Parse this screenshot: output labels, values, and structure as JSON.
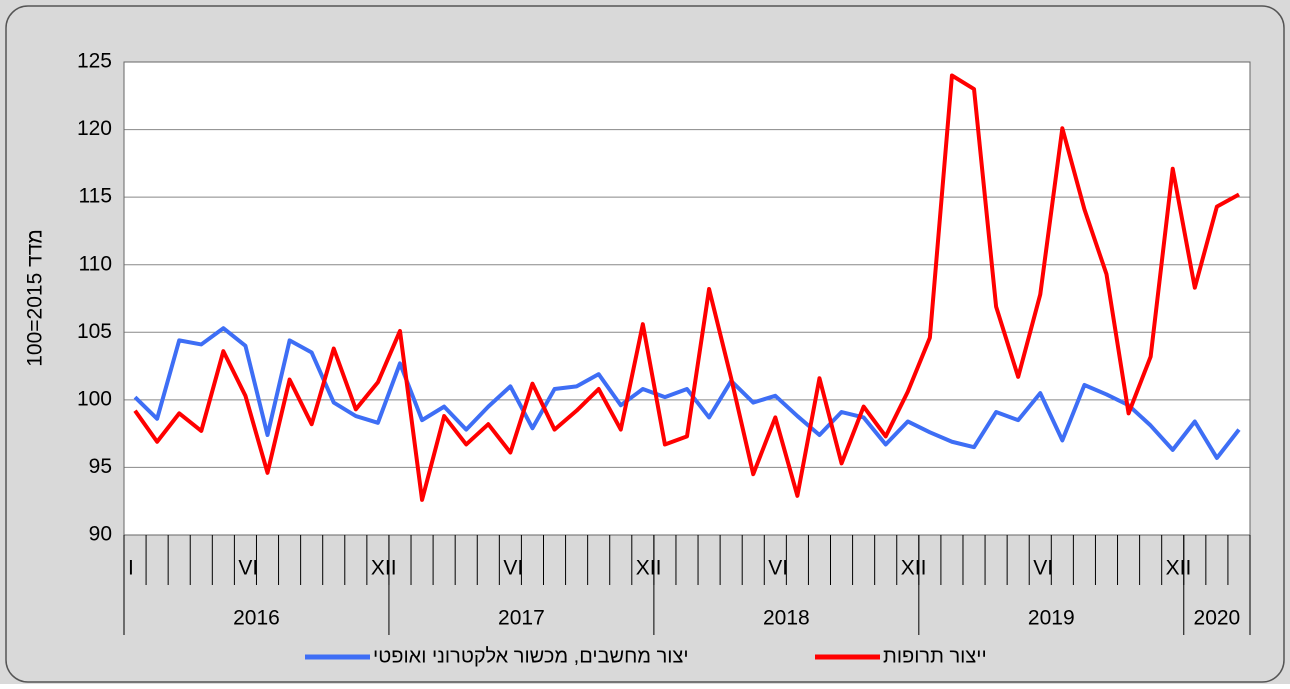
{
  "chart_data": {
    "type": "line",
    "y_label": "מדד 2015=100",
    "categories": [
      "I",
      null,
      null,
      null,
      null,
      "VI",
      null,
      null,
      null,
      null,
      null,
      "XII",
      null,
      null,
      null,
      null,
      null,
      "VI",
      null,
      null,
      null,
      null,
      null,
      "XII",
      null,
      null,
      null,
      null,
      null,
      "VI",
      null,
      null,
      null,
      null,
      null,
      "XII",
      null,
      null,
      null,
      null,
      null,
      "VI",
      null,
      null,
      null,
      null,
      null,
      "XII",
      null,
      null,
      null
    ],
    "years": [
      "2016",
      "2017",
      "2018",
      "2019",
      "2020"
    ],
    "year_spans": [
      12,
      12,
      12,
      12,
      3
    ],
    "series": [
      {
        "name": "יצור מחשבים, מכשור אלקטרוני ואופטי",
        "color": "#3e6ef5",
        "values": [
          100.2,
          98.6,
          104.4,
          104.1,
          105.3,
          104.0,
          97.4,
          104.4,
          103.5,
          99.8,
          98.8,
          98.3,
          102.7,
          98.5,
          99.5,
          97.8,
          99.5,
          101.0,
          97.9,
          100.8,
          101.0,
          101.9,
          99.6,
          100.8,
          100.2,
          100.8,
          98.7,
          101.4,
          99.8,
          100.3,
          98.8,
          97.4,
          99.1,
          98.7,
          96.7,
          98.4,
          97.6,
          96.9,
          96.5,
          99.1,
          98.5,
          100.5,
          97.0,
          101.1,
          100.4,
          99.6,
          98.1,
          96.3,
          98.4,
          95.7,
          97.8
        ]
      },
      {
        "name": "ייצור תרופות",
        "color": "#ff0000",
        "values": [
          99.2,
          96.9,
          99.0,
          97.7,
          103.6,
          100.3,
          94.6,
          101.5,
          98.2,
          103.8,
          99.3,
          101.3,
          105.1,
          92.6,
          98.8,
          96.7,
          98.2,
          96.1,
          101.2,
          97.8,
          99.2,
          100.8,
          97.8,
          105.6,
          96.7,
          97.3,
          108.2,
          101.6,
          94.5,
          98.7,
          92.9,
          101.6,
          95.3,
          99.5,
          97.3,
          100.6,
          104.6,
          124.0,
          123.0,
          106.9,
          101.7,
          107.8,
          120.1,
          114.1,
          109.3,
          99.0,
          103.2,
          117.1,
          108.3,
          114.3,
          115.2
        ]
      }
    ],
    "ylim": [
      90,
      125
    ],
    "yticks": [
      90,
      95,
      100,
      105,
      110,
      115,
      120,
      125
    ],
    "grid": true
  }
}
